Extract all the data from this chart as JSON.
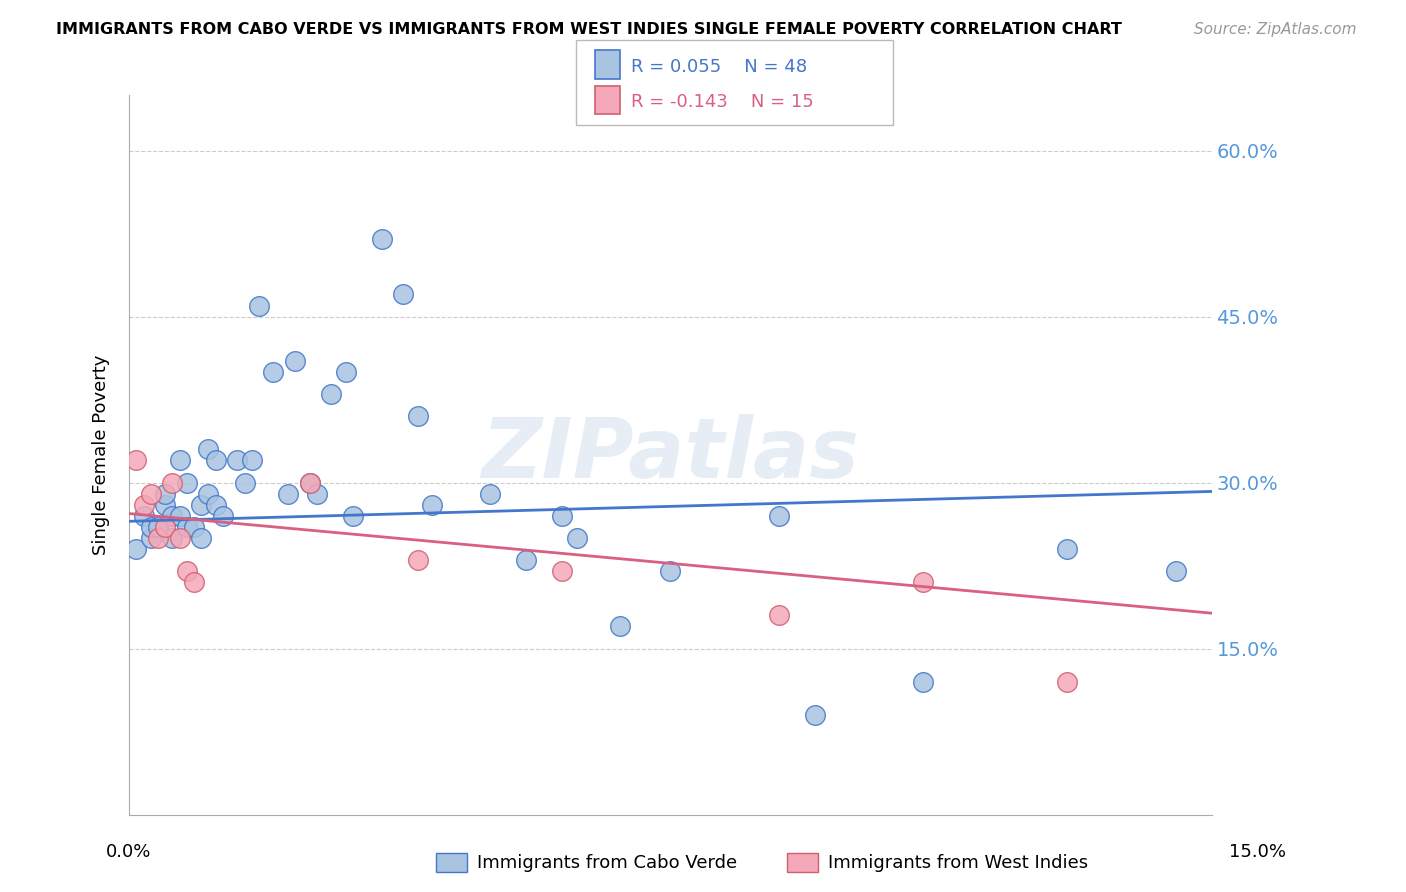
{
  "title": "IMMIGRANTS FROM CABO VERDE VS IMMIGRANTS FROM WEST INDIES SINGLE FEMALE POVERTY CORRELATION CHART",
  "source": "Source: ZipAtlas.com",
  "ylabel": "Single Female Poverty",
  "watermark": "ZIPatlas",
  "legend_blue_r": "0.055",
  "legend_blue_n": "48",
  "legend_pink_r": "-0.143",
  "legend_pink_n": "15",
  "blue_fill": "#a8c4e0",
  "pink_fill": "#f4a8b8",
  "trend_blue": "#4477cc",
  "trend_pink": "#d96080",
  "blue_edge": "#4477cc",
  "pink_edge": "#d06070",
  "cabo_verde_x": [
    0.001,
    0.002,
    0.003,
    0.003,
    0.004,
    0.005,
    0.005,
    0.006,
    0.006,
    0.007,
    0.007,
    0.008,
    0.008,
    0.009,
    0.01,
    0.01,
    0.011,
    0.011,
    0.012,
    0.012,
    0.013,
    0.015,
    0.016,
    0.017,
    0.018,
    0.02,
    0.022,
    0.023,
    0.025,
    0.026,
    0.028,
    0.03,
    0.031,
    0.035,
    0.038,
    0.04,
    0.042,
    0.05,
    0.055,
    0.06,
    0.062,
    0.068,
    0.075,
    0.09,
    0.095,
    0.11,
    0.13,
    0.145
  ],
  "cabo_verde_y": [
    0.24,
    0.27,
    0.25,
    0.26,
    0.26,
    0.28,
    0.29,
    0.25,
    0.27,
    0.32,
    0.27,
    0.3,
    0.26,
    0.26,
    0.28,
    0.25,
    0.29,
    0.33,
    0.32,
    0.28,
    0.27,
    0.32,
    0.3,
    0.32,
    0.46,
    0.4,
    0.29,
    0.41,
    0.3,
    0.29,
    0.38,
    0.4,
    0.27,
    0.52,
    0.47,
    0.36,
    0.28,
    0.29,
    0.23,
    0.27,
    0.25,
    0.17,
    0.22,
    0.27,
    0.09,
    0.12,
    0.24,
    0.22
  ],
  "west_indies_x": [
    0.001,
    0.002,
    0.003,
    0.004,
    0.005,
    0.006,
    0.007,
    0.008,
    0.009,
    0.025,
    0.04,
    0.06,
    0.09,
    0.11,
    0.13
  ],
  "west_indies_y": [
    0.32,
    0.28,
    0.29,
    0.25,
    0.26,
    0.3,
    0.25,
    0.22,
    0.21,
    0.3,
    0.23,
    0.22,
    0.18,
    0.21,
    0.12
  ],
  "x_range": [
    0.0,
    0.15
  ],
  "y_range": [
    0.0,
    0.65
  ],
  "yticks": [
    0.0,
    0.15,
    0.3,
    0.45,
    0.6
  ],
  "ytick_labels": [
    "",
    "15.0%",
    "30.0%",
    "45.0%",
    "60.0%"
  ],
  "grid_color": "#cccccc",
  "blue_trend_y0": 0.265,
  "blue_trend_y1": 0.292,
  "pink_trend_y0": 0.272,
  "pink_trend_y1": 0.182
}
